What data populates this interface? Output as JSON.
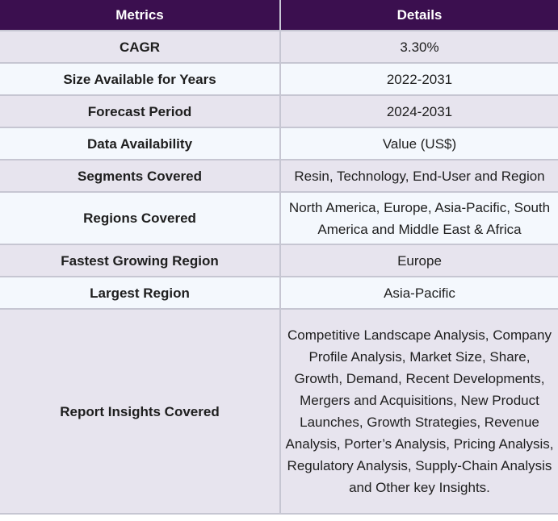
{
  "header": {
    "metric": "Metrics",
    "detail": "Details"
  },
  "rows": [
    {
      "metric": "CAGR",
      "detail": "3.30%"
    },
    {
      "metric": "Size Available for Years",
      "detail": "2022-2031"
    },
    {
      "metric": "Forecast Period",
      "detail": "2024-2031"
    },
    {
      "metric": "Data Availability",
      "detail": "Value (US$)"
    },
    {
      "metric": "Segments Covered",
      "detail": "Resin, Technology, End-User and Region"
    },
    {
      "metric": "Regions Covered",
      "detail": "North America, Europe, Asia-Pacific, South America and Middle East & Africa"
    },
    {
      "metric": "Fastest Growing Region",
      "detail": "Europe"
    },
    {
      "metric": "Largest Region",
      "detail": "Asia-Pacific"
    },
    {
      "metric": "Report Insights Covered",
      "detail": "Competitive Landscape Analysis, Company Profile Analysis, Market Size, Share, Growth, Demand, Recent Developments, Mergers and Acquisitions, New Product Launches, Growth Strategies, Revenue Analysis, Porter’s Analysis, Pricing Analysis, Regulatory Analysis, Supply-Chain Analysis and Other key Insights."
    }
  ]
}
